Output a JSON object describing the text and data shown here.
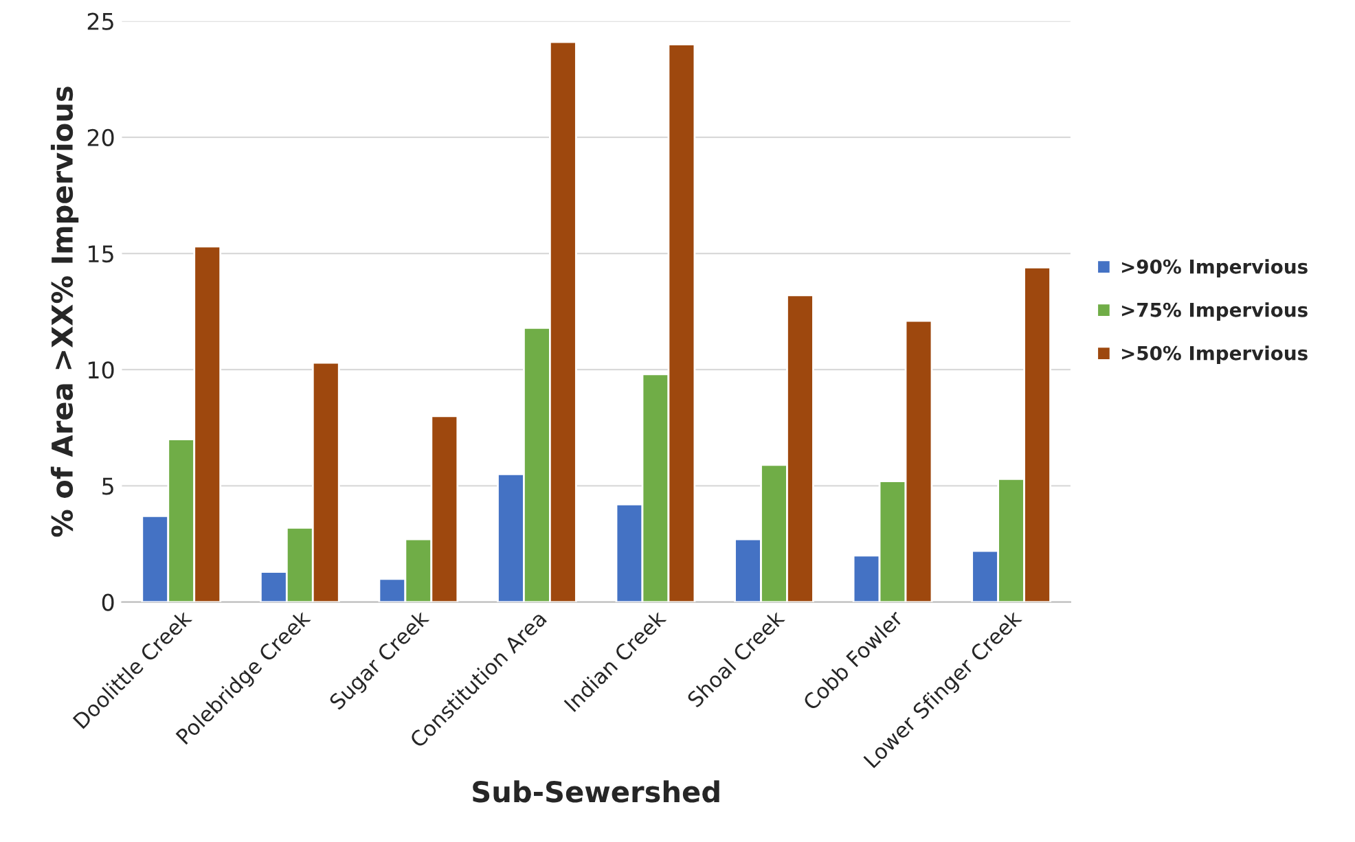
{
  "chart_data": {
    "type": "bar",
    "xlabel": "Sub-Sewershed",
    "ylabel": "% of Area >XX% Impervious",
    "categories": [
      "Doolittle Creek",
      "Polebridge Creek",
      "Sugar Creek",
      "Constitution Area",
      "Indian Creek",
      "Shoal Creek",
      "Cobb Fowler",
      "Lower Sfinger Creek"
    ],
    "series": [
      {
        "name": ">90% Impervious",
        "color": "#4472c4",
        "values": [
          3.7,
          1.3,
          1.0,
          5.5,
          4.2,
          2.7,
          2.0,
          2.2
        ]
      },
      {
        "name": ">75% Impervious",
        "color": "#70ad47",
        "values": [
          7.0,
          3.2,
          2.7,
          11.8,
          9.8,
          5.9,
          5.2,
          5.3
        ]
      },
      {
        "name": ">50% Impervious",
        "color": "#9e480e",
        "values": [
          15.3,
          10.3,
          8.0,
          24.1,
          24.0,
          13.2,
          12.1,
          14.4
        ]
      }
    ],
    "ylim": [
      0,
      25
    ],
    "yticks": [
      0,
      5,
      10,
      15,
      20,
      25
    ],
    "grid": "y",
    "legend": "right"
  }
}
